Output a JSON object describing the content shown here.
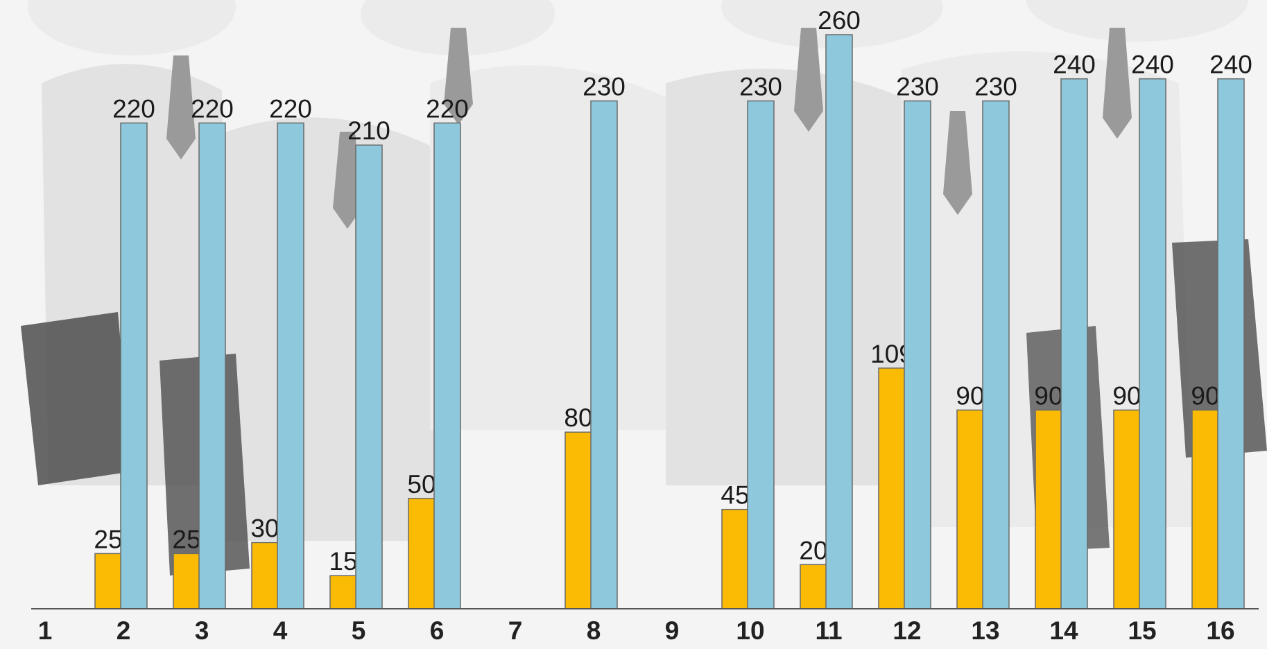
{
  "chart_data": {
    "type": "bar",
    "categories": [
      "1",
      "2",
      "3",
      "4",
      "5",
      "6",
      "7",
      "8",
      "9",
      "10",
      "11",
      "12",
      "13",
      "14",
      "15",
      "16"
    ],
    "series": [
      {
        "values": [
          null,
          25,
          25,
          30,
          15,
          50,
          null,
          80,
          null,
          45,
          20,
          109,
          90,
          90,
          90,
          90
        ],
        "color": "#fbbb04"
      },
      {
        "values": [
          null,
          220,
          220,
          220,
          210,
          220,
          null,
          230,
          null,
          230,
          260,
          230,
          230,
          240,
          240,
          240
        ],
        "color": "#8dc8dc"
      }
    ],
    "data_labels": true,
    "ylim": [
      0,
      260
    ],
    "grid": false,
    "legend": "none",
    "title": "",
    "xlabel": "",
    "ylabel": ""
  }
}
